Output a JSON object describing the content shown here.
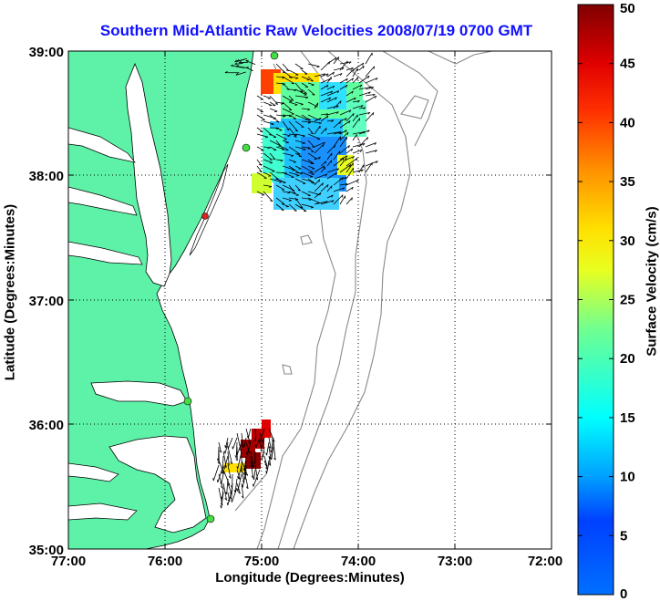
{
  "title": "Southern Mid-Atlantic Raw Velocities 2008/07/19 0700 GMT",
  "ylabel": "Latitude (Degrees:Minutes)",
  "xlabel": "Longitude (Degrees:Minutes)",
  "colorbar": {
    "label": "Surface Velocity (cm/s)",
    "ticks": [
      "0",
      "5",
      "10",
      "15",
      "20",
      "25",
      "30",
      "35",
      "40",
      "45",
      "50"
    ],
    "range": [
      0,
      50
    ]
  },
  "xticks": [
    "77:00",
    "76:00",
    "75:00",
    "74:00",
    "73:00",
    "72:00"
  ],
  "yticks": [
    "39:00",
    "38:00",
    "37:00",
    "36:00",
    "35:00"
  ],
  "map_extent": {
    "lon": [
      -77,
      -72
    ],
    "lat": [
      35,
      39
    ]
  },
  "colors": {
    "land": "#5ef2a8",
    "title": "#1010ff",
    "contour": "#8a8a8a",
    "station_green": "#44dd44",
    "station_red": "#dd2222"
  }
}
